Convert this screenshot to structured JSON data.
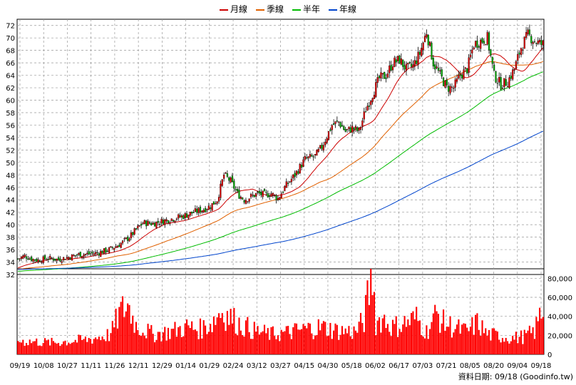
{
  "legend": [
    {
      "name": "月線",
      "color": "#cc0000"
    },
    {
      "name": "季線",
      "color": "#e06000"
    },
    {
      "name": "半年",
      "color": "#00bb00"
    },
    {
      "name": "年線",
      "color": "#0044cc"
    }
  ],
  "footer": {
    "label": "資料日期: 09/18",
    "source": "(Goodinfo.tw)"
  },
  "chart_data": [
    {
      "type": "candlestick",
      "title": "",
      "ylim": [
        32,
        73
      ],
      "y_ticks": [
        32,
        34,
        36,
        38,
        40,
        42,
        44,
        46,
        48,
        50,
        52,
        54,
        56,
        58,
        60,
        62,
        64,
        66,
        68,
        70,
        72
      ],
      "x_ticks": [
        "09/19",
        "10/08",
        "10/27",
        "11/11",
        "11/26",
        "12/11",
        "12/29",
        "01/14",
        "01/29",
        "02/24",
        "03/12",
        "03/27",
        "04/15",
        "04/30",
        "05/18",
        "06/02",
        "06/17",
        "07/03",
        "07/21",
        "08/05",
        "08/20",
        "09/04",
        "09/18"
      ],
      "up_color": "#dd0000",
      "down_color": "#00aa00",
      "close_anchors": [
        [
          0,
          34.5
        ],
        [
          4,
          35.0
        ],
        [
          8,
          34.5
        ],
        [
          12,
          34.3
        ],
        [
          18,
          34.6
        ],
        [
          24,
          34.4
        ],
        [
          30,
          34.8
        ],
        [
          36,
          35.2
        ],
        [
          42,
          35.3
        ],
        [
          48,
          35.5
        ],
        [
          54,
          36.0
        ],
        [
          60,
          36.8
        ],
        [
          66,
          38.0
        ],
        [
          70,
          39.2
        ],
        [
          74,
          40.3
        ],
        [
          80,
          40.2
        ],
        [
          86,
          40.6
        ],
        [
          92,
          41.0
        ],
        [
          98,
          41.4
        ],
        [
          104,
          42.0
        ],
        [
          110,
          42.5
        ],
        [
          114,
          43.0
        ],
        [
          118,
          44.0
        ],
        [
          122,
          48.0
        ],
        [
          126,
          47.0
        ],
        [
          130,
          45.0
        ],
        [
          134,
          44.0
        ],
        [
          138,
          44.5
        ],
        [
          142,
          45.0
        ],
        [
          146,
          44.8
        ],
        [
          150,
          45.0
        ],
        [
          154,
          44.2
        ],
        [
          158,
          46.0
        ],
        [
          164,
          48.0
        ],
        [
          170,
          50.5
        ],
        [
          176,
          51.0
        ],
        [
          180,
          52.5
        ],
        [
          186,
          56.0
        ],
        [
          190,
          56.5
        ],
        [
          194,
          55.0
        ],
        [
          198,
          55.5
        ],
        [
          202,
          55.0
        ],
        [
          206,
          58.5
        ],
        [
          210,
          61.0
        ],
        [
          214,
          63.5
        ],
        [
          218,
          64.0
        ],
        [
          222,
          66.0
        ],
        [
          226,
          66.5
        ],
        [
          230,
          65.0
        ],
        [
          234,
          65.5
        ],
        [
          238,
          67.5
        ],
        [
          242,
          71.0
        ],
        [
          246,
          66.0
        ],
        [
          250,
          64.0
        ],
        [
          254,
          62.0
        ],
        [
          258,
          62.0
        ],
        [
          262,
          64.0
        ],
        [
          266,
          65.0
        ],
        [
          270,
          69.0
        ],
        [
          274,
          69.5
        ],
        [
          278,
          70.0
        ],
        [
          282,
          64.0
        ],
        [
          286,
          62.5
        ],
        [
          290,
          63.0
        ],
        [
          294,
          65.0
        ],
        [
          298,
          68.5
        ],
        [
          302,
          70.5
        ],
        [
          306,
          69.5
        ],
        [
          310,
          69.0
        ]
      ],
      "moving_averages": [
        {
          "name": "月線",
          "window": 20
        },
        {
          "name": "季線",
          "window": 60
        },
        {
          "name": "半年",
          "window": 120
        },
        {
          "name": "年線",
          "window": 240
        }
      ],
      "series_start": {
        "月線": 33.0,
        "季線": 32.8,
        "半年": 32.5,
        "年線": 32.8
      }
    },
    {
      "type": "bar",
      "ylim": [
        0,
        90000
      ],
      "y_ticks": [
        0,
        20000,
        40000,
        60000,
        80000
      ],
      "y_tick_labels": [
        "0",
        "20,000",
        "40,000",
        "60,000",
        "80,000"
      ],
      "color": "#ff0000",
      "value_anchors": [
        [
          0,
          15000
        ],
        [
          20,
          13000
        ],
        [
          40,
          16000
        ],
        [
          55,
          22000
        ],
        [
          60,
          45000
        ],
        [
          65,
          55000
        ],
        [
          70,
          32000
        ],
        [
          80,
          22000
        ],
        [
          90,
          25000
        ],
        [
          100,
          30000
        ],
        [
          108,
          28000
        ],
        [
          115,
          35000
        ],
        [
          120,
          48000
        ],
        [
          125,
          42000
        ],
        [
          130,
          35000
        ],
        [
          140,
          26000
        ],
        [
          150,
          22000
        ],
        [
          160,
          24000
        ],
        [
          170,
          28000
        ],
        [
          180,
          30000
        ],
        [
          190,
          26000
        ],
        [
          200,
          25000
        ],
        [
          205,
          38000
        ],
        [
          210,
          92000
        ],
        [
          212,
          35000
        ],
        [
          216,
          40000
        ],
        [
          222,
          30000
        ],
        [
          230,
          35000
        ],
        [
          236,
          40000
        ],
        [
          242,
          25000
        ],
        [
          248,
          45000
        ],
        [
          252,
          35000
        ],
        [
          258,
          30000
        ],
        [
          266,
          25000
        ],
        [
          272,
          35000
        ],
        [
          278,
          22000
        ],
        [
          286,
          20000
        ],
        [
          294,
          18000
        ],
        [
          300,
          20000
        ],
        [
          306,
          25000
        ],
        [
          310,
          48000
        ]
      ]
    }
  ]
}
